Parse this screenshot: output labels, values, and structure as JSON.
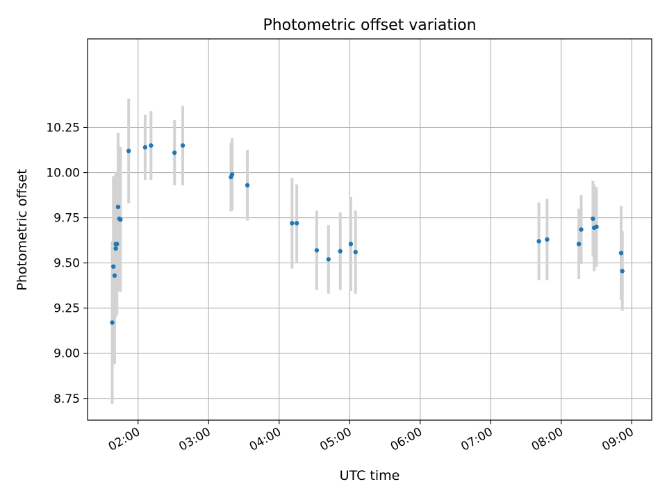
{
  "chart_data": {
    "type": "scatter",
    "title": "Photometric offset variation",
    "xlabel": "UTC time",
    "ylabel": "Photometric offset",
    "xlim": [
      "01:17",
      "09:17"
    ],
    "ylim": [
      8.63,
      10.74
    ],
    "x_ticks": [
      "02:00",
      "03:00",
      "04:00",
      "05:00",
      "06:00",
      "07:00",
      "08:00",
      "09:00"
    ],
    "y_ticks": [
      "8.75",
      "9.00",
      "9.25",
      "9.50",
      "9.75",
      "10.00",
      "10.25"
    ],
    "grid": true,
    "point_color": "#1f77b4",
    "errorbar_color": "#d3d3d3",
    "points": [
      {
        "x": "01:38",
        "y": 9.17,
        "err": 0.45
      },
      {
        "x": "01:39",
        "y": 9.48,
        "err": 0.5
      },
      {
        "x": "01:40",
        "y": 9.43,
        "err": 0.49
      },
      {
        "x": "01:41",
        "y": 9.58,
        "err": 0.38
      },
      {
        "x": "01:41",
        "y": 9.605,
        "err": 0.4
      },
      {
        "x": "01:42",
        "y": 9.605,
        "err": 0.39
      },
      {
        "x": "01:43",
        "y": 9.81,
        "err": 0.41
      },
      {
        "x": "01:44",
        "y": 9.745,
        "err": 0.4
      },
      {
        "x": "01:45",
        "y": 9.74,
        "err": 0.4
      },
      {
        "x": "01:52",
        "y": 10.12,
        "err": 0.29
      },
      {
        "x": "02:06",
        "y": 10.14,
        "err": 0.18
      },
      {
        "x": "02:11",
        "y": 10.15,
        "err": 0.19
      },
      {
        "x": "02:31",
        "y": 10.11,
        "err": 0.18
      },
      {
        "x": "02:38",
        "y": 10.15,
        "err": 0.22
      },
      {
        "x": "03:19",
        "y": 9.975,
        "err": 0.19
      },
      {
        "x": "03:20",
        "y": 9.99,
        "err": 0.2
      },
      {
        "x": "03:33",
        "y": 9.93,
        "err": 0.195
      },
      {
        "x": "04:11",
        "y": 9.72,
        "err": 0.25
      },
      {
        "x": "04:15",
        "y": 9.72,
        "err": 0.215
      },
      {
        "x": "04:32",
        "y": 9.57,
        "err": 0.22
      },
      {
        "x": "04:42",
        "y": 9.52,
        "err": 0.19
      },
      {
        "x": "04:52",
        "y": 9.565,
        "err": 0.215
      },
      {
        "x": "05:01",
        "y": 9.605,
        "err": 0.26
      },
      {
        "x": "05:05",
        "y": 9.56,
        "err": 0.23
      },
      {
        "x": "07:41",
        "y": 9.62,
        "err": 0.215
      },
      {
        "x": "07:48",
        "y": 9.63,
        "err": 0.225
      },
      {
        "x": "08:15",
        "y": 9.605,
        "err": 0.195
      },
      {
        "x": "08:17",
        "y": 9.685,
        "err": 0.19
      },
      {
        "x": "08:27",
        "y": 9.745,
        "err": 0.21
      },
      {
        "x": "08:28",
        "y": 9.695,
        "err": 0.24
      },
      {
        "x": "08:30",
        "y": 9.7,
        "err": 0.22
      },
      {
        "x": "08:51",
        "y": 9.555,
        "err": 0.26
      },
      {
        "x": "08:52",
        "y": 9.455,
        "err": 0.22
      }
    ]
  }
}
